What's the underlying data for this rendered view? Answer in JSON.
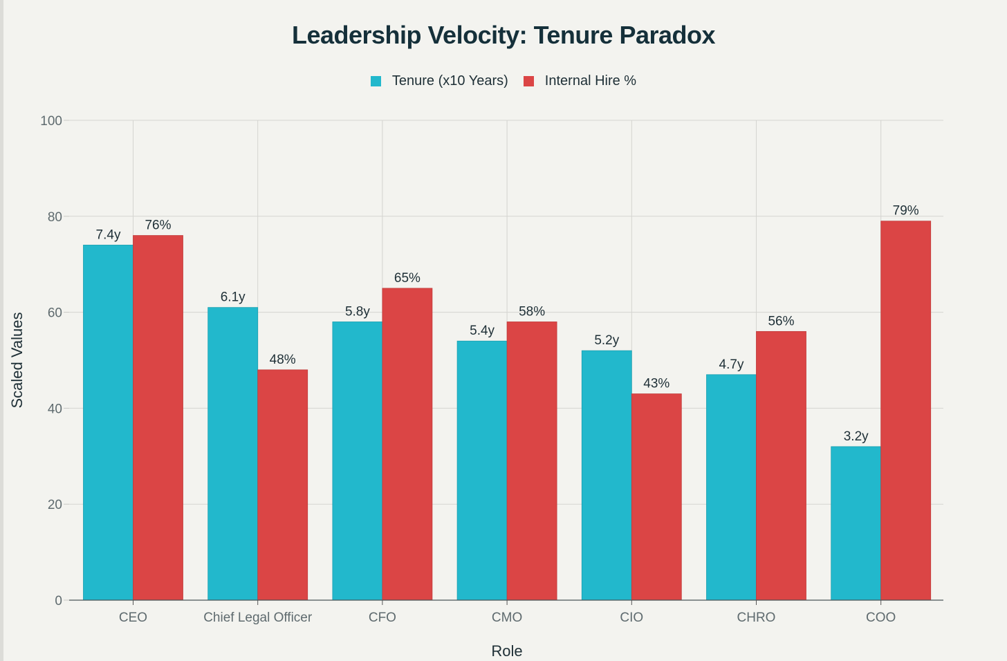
{
  "chart_data": {
    "type": "bar",
    "title": "Leadership Velocity: Tenure Paradox",
    "xlabel": "Role",
    "ylabel": "Scaled Values",
    "ylim": [
      0,
      100
    ],
    "yticks": [
      0,
      20,
      40,
      60,
      80,
      100
    ],
    "grid": true,
    "legend_position": "top-center",
    "categories": [
      "CEO",
      "Chief Legal Officer",
      "CFO",
      "CMO",
      "CIO",
      "CHRO",
      "COO"
    ],
    "series": [
      {
        "name": "Tenure (x10 Years)",
        "color": "#22b8cc",
        "values": [
          74,
          61,
          58,
          54,
          52,
          47,
          32
        ],
        "labels": [
          "7.4y",
          "6.1y",
          "5.8y",
          "5.4y",
          "5.2y",
          "4.7y",
          "3.2y"
        ]
      },
      {
        "name": "Internal Hire %",
        "color": "#db4545",
        "values": [
          76,
          48,
          65,
          58,
          43,
          56,
          79
        ],
        "labels": [
          "76%",
          "48%",
          "65%",
          "58%",
          "43%",
          "56%",
          "79%"
        ]
      }
    ]
  }
}
